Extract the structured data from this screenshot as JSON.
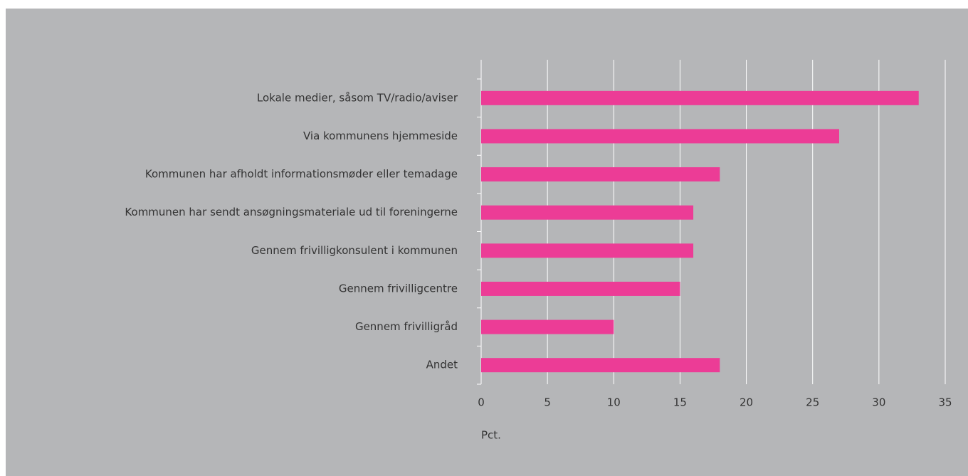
{
  "chart_data": {
    "type": "bar",
    "orientation": "horizontal",
    "categories": [
      "Lokale medier, såsom TV/radio/aviser",
      "Via kommunens hjemmeside",
      "Kommunen har afholdt informationsmøder eller temadage",
      "Kommunen har sendt ansøgningsmateriale ud til foreningerne",
      "Gennem frivilligkonsulent i kommunen",
      "Gennem frivilligcentre",
      "Gennem frivilligråd",
      "Andet"
    ],
    "values": [
      33,
      27,
      18,
      16,
      16,
      15,
      10,
      18
    ],
    "color": "#ec3c96",
    "xlabel": "Pct.",
    "xlim": [
      0,
      35
    ],
    "xticks": [
      0,
      5,
      10,
      15,
      20,
      25,
      30,
      35
    ],
    "grid": true
  }
}
